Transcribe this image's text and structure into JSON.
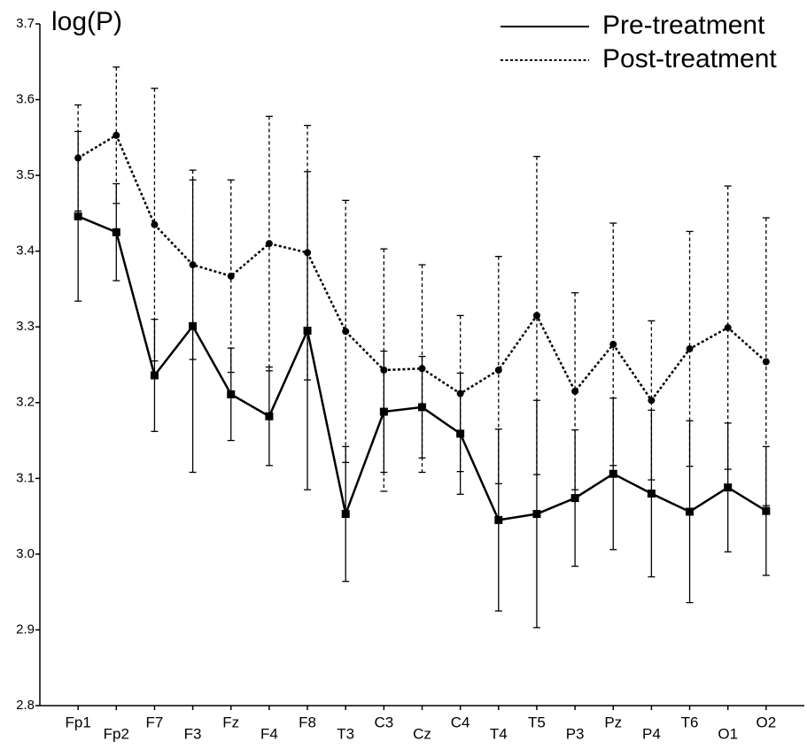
{
  "chart_data": {
    "type": "line",
    "y_label": "log(P)",
    "categories": [
      "Fp1",
      "Fp2",
      "F7",
      "F3",
      "Fz",
      "F4",
      "F8",
      "T3",
      "C3",
      "Cz",
      "C4",
      "T4",
      "T5",
      "P3",
      "Pz",
      "P4",
      "T6",
      "O1",
      "O2"
    ],
    "series": [
      {
        "name": "Pre-treatment",
        "color": "#000000",
        "dash": "solid",
        "marker": "square",
        "values": [
          3.446,
          3.425,
          3.236,
          3.301,
          3.211,
          3.182,
          3.295,
          3.053,
          3.188,
          3.194,
          3.159,
          3.045,
          3.053,
          3.074,
          3.106,
          3.08,
          3.056,
          3.088,
          3.057
        ],
        "errors": [
          0.112,
          0.064,
          0.074,
          0.193,
          0.061,
          0.065,
          0.21,
          0.089,
          0.08,
          0.067,
          0.08,
          0.12,
          0.15,
          0.09,
          0.1,
          0.11,
          0.12,
          0.085,
          0.085
        ]
      },
      {
        "name": "Post-treatment",
        "color": "#000000",
        "dash": "dotted",
        "marker": "circle",
        "values": [
          3.523,
          3.553,
          3.435,
          3.382,
          3.367,
          3.41,
          3.398,
          3.294,
          3.243,
          3.245,
          3.212,
          3.243,
          3.315,
          3.215,
          3.277,
          3.203,
          3.271,
          3.299,
          3.254
        ],
        "errors": [
          0.07,
          0.09,
          0.18,
          0.125,
          0.127,
          0.168,
          0.168,
          0.173,
          0.16,
          0.137,
          0.103,
          0.15,
          0.21,
          0.13,
          0.16,
          0.105,
          0.155,
          0.187,
          0.19
        ]
      }
    ],
    "ylim": [
      2.8,
      3.7
    ],
    "yticks": [
      2.8,
      2.9,
      {
        "value": 3.0,
        "label": "3.0"
      },
      3.1,
      3.2,
      3.3,
      3.4,
      3.5,
      3.6,
      3.7
    ],
    "legend": "top-right"
  }
}
